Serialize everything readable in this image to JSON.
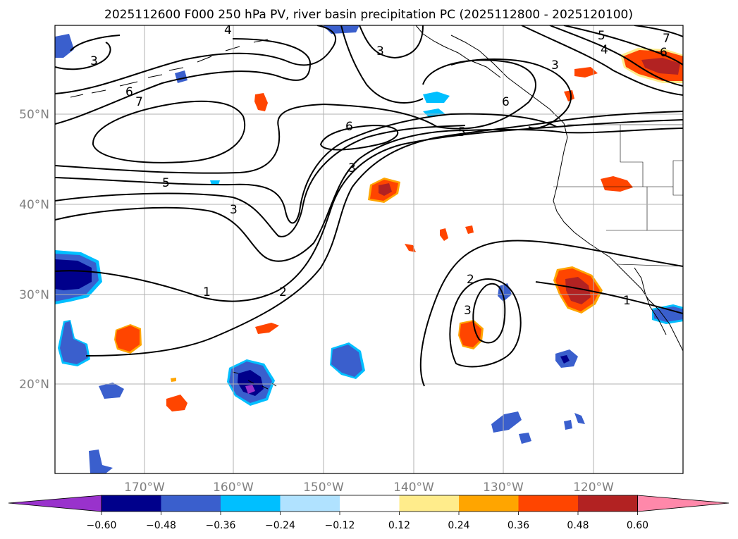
{
  "title": "2025112600 F000 250 hPa PV, river basin precipitation PC (2025112800 - 2025120100)",
  "lat_ticks": [
    "50°N",
    "40°N",
    "30°N",
    "20°N"
  ],
  "lon_ticks": [
    "170°W",
    "160°W",
    "150°W",
    "140°W",
    "130°W",
    "120°W"
  ],
  "colorbar": {
    "ticks": [
      "−0.60",
      "−0.48",
      "−0.36",
      "−0.24",
      "−0.12",
      "0.12",
      "0.24",
      "0.36",
      "0.48",
      "0.60"
    ],
    "colors": [
      "#9932CC",
      "#00008B",
      "#3A5FCD",
      "#00BFFF",
      "#B0E2FF",
      "#FFFFFF",
      "#FFEC8B",
      "#FFA500",
      "#FF4500",
      "#B22222",
      "#FF88AA"
    ]
  },
  "contour_labels": [
    "1",
    "2",
    "3",
    "4",
    "5",
    "6",
    "7"
  ]
}
